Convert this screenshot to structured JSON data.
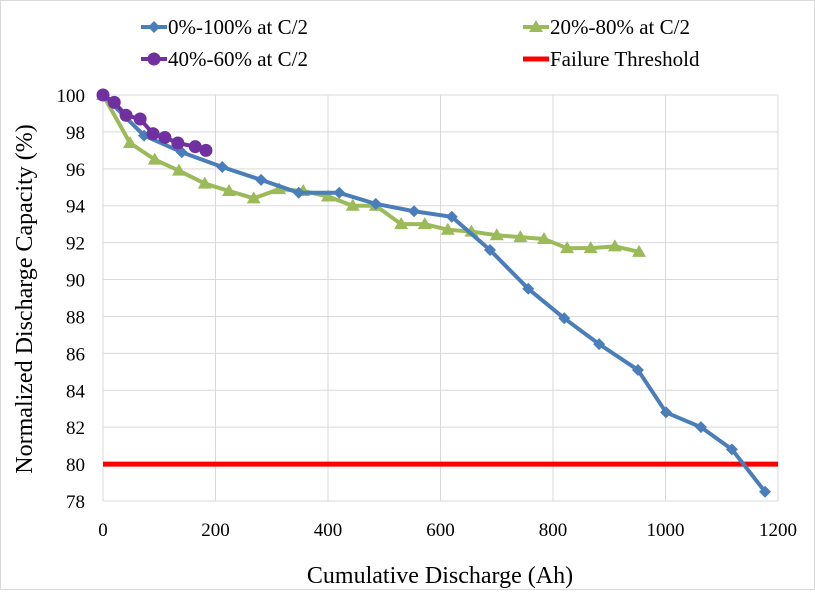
{
  "chart_data": {
    "type": "line",
    "title": "",
    "xlabel": "Cumulative Discharge (Ah)",
    "ylabel": "Normalized Discharge Capacity (%)",
    "xlim": [
      0,
      1200
    ],
    "ylim": [
      78,
      100
    ],
    "xticks": [
      0,
      200,
      400,
      600,
      800,
      1000,
      1200
    ],
    "yticks": [
      78,
      80,
      82,
      84,
      86,
      88,
      90,
      92,
      94,
      96,
      98,
      100
    ],
    "grid": true,
    "legend_position": "top",
    "series": [
      {
        "name": "0%-100% at C/2",
        "color": "#4a7ebb",
        "marker": "diamond",
        "x": [
          0,
          73,
          140,
          212,
          281,
          348,
          420,
          485,
          553,
          620,
          688,
          756,
          820,
          882,
          951,
          1001,
          1063,
          1118,
          1177
        ],
        "y": [
          100,
          97.8,
          96.9,
          96.1,
          95.4,
          94.7,
          94.7,
          94.1,
          93.7,
          93.4,
          91.6,
          89.5,
          87.9,
          86.5,
          85.1,
          82.8,
          82.0,
          80.8,
          78.5
        ]
      },
      {
        "name": "20%-80% at C/2",
        "color": "#9bbb59",
        "marker": "triangle",
        "x": [
          0,
          48,
          92,
          135,
          181,
          224,
          268,
          313,
          356,
          400,
          444,
          485,
          530,
          572,
          613,
          655,
          700,
          742,
          784,
          825,
          867,
          910,
          953
        ],
        "y": [
          100,
          97.4,
          96.5,
          95.9,
          95.2,
          94.8,
          94.4,
          94.9,
          94.8,
          94.5,
          94.0,
          94.0,
          93.0,
          93.0,
          92.7,
          92.6,
          92.4,
          92.3,
          92.2,
          91.7,
          91.7,
          91.8,
          91.5
        ]
      },
      {
        "name": "40%-60% at C/2",
        "color": "#7030a0",
        "marker": "circle",
        "x": [
          0,
          20,
          41,
          66,
          89,
          110,
          133,
          164,
          183
        ],
        "y": [
          100,
          99.6,
          98.9,
          98.7,
          97.9,
          97.7,
          97.4,
          97.2,
          97.0
        ]
      },
      {
        "name": "Failure Threshold",
        "color": "#ff0000",
        "marker": "none",
        "x": [
          0,
          1200
        ],
        "y": [
          80,
          80
        ]
      }
    ]
  }
}
